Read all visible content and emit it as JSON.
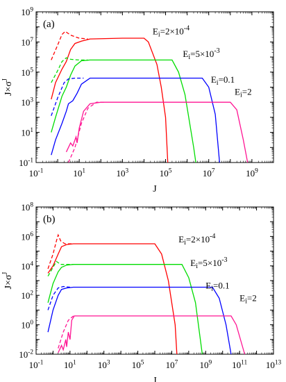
{
  "chart_data": [
    {
      "type": "line",
      "panel_label": "(a)",
      "xlabel": "J",
      "ylabel": "J×σ",
      "ylabel_sup": "J",
      "xscale": "log",
      "yscale": "log",
      "xlim_exp": [
        -1,
        10
      ],
      "ylim_exp": [
        -1,
        9
      ],
      "x_ticks": [
        {
          "exp": -1,
          "label": "10",
          "sup": "-1"
        },
        {
          "exp": 1,
          "label": "10",
          "sup": "1"
        },
        {
          "exp": 3,
          "label": "10",
          "sup": "3"
        },
        {
          "exp": 5,
          "label": "10",
          "sup": "5"
        },
        {
          "exp": 7,
          "label": "10",
          "sup": "7"
        },
        {
          "exp": 9,
          "label": "10",
          "sup": "9"
        }
      ],
      "y_ticks": [
        {
          "exp": -1,
          "label": "10",
          "sup": "-1"
        },
        {
          "exp": 1,
          "label": "10",
          "sup": "1"
        },
        {
          "exp": 3,
          "label": "10",
          "sup": "3"
        },
        {
          "exp": 5,
          "label": "10",
          "sup": "5"
        },
        {
          "exp": 7,
          "label": "10",
          "sup": "7"
        },
        {
          "exp": 9,
          "label": "10",
          "sup": "9"
        }
      ],
      "series": [
        {
          "label_main": "E",
          "label_sub": "i",
          "label_value": "=2×10",
          "label_sup": "-4",
          "label_at": [
            4.4,
            7.5
          ],
          "color": "#ff0000",
          "solid": [
            [
              -0.3,
              3.2
            ],
            [
              -0.1,
              4.3
            ],
            [
              0.2,
              5.2
            ],
            [
              0.4,
              5.7
            ],
            [
              0.6,
              6.5
            ],
            [
              0.8,
              6.9
            ],
            [
              1.1,
              7.05
            ],
            [
              1.5,
              7.2
            ],
            [
              3.0,
              7.25
            ],
            [
              4.0,
              7.25
            ],
            [
              4.2,
              7.0
            ],
            [
              4.6,
              5.5
            ],
            [
              4.8,
              4.0
            ],
            [
              5.0,
              2.0
            ],
            [
              5.1,
              -1.0
            ]
          ],
          "dashed": [
            [
              -0.3,
              5.8
            ],
            [
              0.0,
              6.8
            ],
            [
              0.2,
              7.5
            ],
            [
              0.35,
              7.7
            ],
            [
              0.6,
              7.45
            ],
            [
              1.0,
              7.25
            ],
            [
              1.4,
              7.2
            ]
          ]
        },
        {
          "label_main": "E",
          "label_sub": "i",
          "label_value": "=5×10",
          "label_sup": "-3",
          "label_at": [
            5.8,
            6.0
          ],
          "color": "#00dd00",
          "solid": [
            [
              -0.3,
              1.0
            ],
            [
              -0.1,
              2.0
            ],
            [
              0.2,
              3.4
            ],
            [
              0.4,
              4.0
            ],
            [
              0.6,
              4.8
            ],
            [
              0.8,
              5.4
            ],
            [
              1.1,
              5.75
            ],
            [
              1.5,
              5.8
            ],
            [
              4.0,
              5.8
            ],
            [
              5.3,
              5.8
            ],
            [
              5.6,
              5.0
            ],
            [
              5.9,
              3.5
            ],
            [
              6.3,
              0.0
            ],
            [
              6.4,
              -1.0
            ]
          ],
          "dashed": [
            [
              -0.3,
              4.3
            ],
            [
              0.0,
              5.1
            ],
            [
              0.2,
              5.7
            ],
            [
              0.4,
              5.95
            ],
            [
              0.6,
              5.85
            ],
            [
              1.0,
              5.8
            ],
            [
              1.4,
              5.8
            ]
          ]
        },
        {
          "label_main": "E",
          "label_sub": "i",
          "label_value": "=0.1",
          "label_sup": "",
          "label_at": [
            7.1,
            4.3
          ],
          "color": "#0000ff",
          "solid": [
            [
              -0.3,
              -0.5
            ],
            [
              -0.1,
              0.5
            ],
            [
              0.2,
              1.6
            ],
            [
              0.4,
              2.4
            ],
            [
              0.5,
              2.9
            ],
            [
              0.7,
              3.1
            ],
            [
              0.9,
              3.6
            ],
            [
              1.1,
              4.2
            ],
            [
              1.5,
              4.6
            ],
            [
              4.0,
              4.6
            ],
            [
              6.7,
              4.6
            ],
            [
              7.0,
              4.0
            ],
            [
              7.3,
              2.2
            ],
            [
              7.5,
              -1.0
            ]
          ],
          "dashed": [
            [
              -0.3,
              2.1
            ],
            [
              0.0,
              3.3
            ],
            [
              0.3,
              4.3
            ],
            [
              0.5,
              4.55
            ],
            [
              0.8,
              4.6
            ],
            [
              1.2,
              4.6
            ]
          ]
        },
        {
          "label_main": "E",
          "label_sub": "i",
          "label_value": "=2",
          "label_sup": "",
          "label_at": [
            8.2,
            3.5
          ],
          "color": "#ff1493",
          "solid": [
            [
              0.4,
              -0.3
            ],
            [
              0.6,
              0.3
            ],
            [
              0.7,
              0.1
            ],
            [
              0.85,
              0.7
            ],
            [
              0.9,
              0.3
            ],
            [
              1.0,
              1.3
            ],
            [
              1.2,
              2.4
            ],
            [
              1.5,
              2.9
            ],
            [
              2.0,
              3.0
            ],
            [
              5.0,
              3.0
            ],
            [
              8.0,
              3.0
            ],
            [
              8.3,
              2.5
            ],
            [
              8.6,
              0.5
            ],
            [
              8.8,
              -1.0
            ]
          ],
          "dashed": [
            [
              0.5,
              -1.0
            ],
            [
              0.8,
              0.0
            ],
            [
              1.1,
              1.6
            ],
            [
              1.4,
              2.6
            ],
            [
              1.8,
              3.0
            ],
            [
              2.2,
              3.0
            ]
          ]
        }
      ]
    },
    {
      "type": "line",
      "panel_label": "(b)",
      "xlabel": "J",
      "ylabel": "J×σ",
      "ylabel_sup": "J",
      "xscale": "log",
      "yscale": "log",
      "xlim_exp": [
        -1,
        13
      ],
      "ylim_exp": [
        -2,
        8
      ],
      "x_ticks": [
        {
          "exp": -1,
          "label": "10",
          "sup": "-1"
        },
        {
          "exp": 1,
          "label": "10",
          "sup": "1"
        },
        {
          "exp": 3,
          "label": "10",
          "sup": "3"
        },
        {
          "exp": 5,
          "label": "10",
          "sup": "5"
        },
        {
          "exp": 7,
          "label": "10",
          "sup": "7"
        },
        {
          "exp": 9,
          "label": "10",
          "sup": "9"
        },
        {
          "exp": 11,
          "label": "10",
          "sup": "11"
        },
        {
          "exp": 13,
          "label": "10",
          "sup": "13"
        }
      ],
      "y_ticks": [
        {
          "exp": -2,
          "label": "10",
          "sup": "-2"
        },
        {
          "exp": 0,
          "label": "10",
          "sup": "0"
        },
        {
          "exp": 2,
          "label": "10",
          "sup": "2"
        },
        {
          "exp": 4,
          "label": "10",
          "sup": "4"
        },
        {
          "exp": 6,
          "label": "10",
          "sup": "6"
        },
        {
          "exp": 8,
          "label": "10",
          "sup": "8"
        }
      ],
      "series": [
        {
          "label_main": "E",
          "label_sub": "i",
          "label_value": "=2×10",
          "label_sup": "-4",
          "label_at": [
            7.4,
            5.6
          ],
          "color": "#ff0000",
          "solid": [
            [
              -0.3,
              3.5
            ],
            [
              0.0,
              4.0
            ],
            [
              0.3,
              4.8
            ],
            [
              0.5,
              5.3
            ],
            [
              0.8,
              5.45
            ],
            [
              1.2,
              5.5
            ],
            [
              3.0,
              5.5
            ],
            [
              6.0,
              5.5
            ],
            [
              6.4,
              4.8
            ],
            [
              6.8,
              3.0
            ],
            [
              7.2,
              0.0
            ],
            [
              7.3,
              -2.0
            ]
          ],
          "dashed": [
            [
              -0.3,
              3.8
            ],
            [
              0.0,
              4.8
            ],
            [
              0.2,
              5.7
            ],
            [
              0.3,
              6.1
            ],
            [
              0.45,
              5.7
            ],
            [
              0.7,
              5.5
            ],
            [
              1.2,
              5.5
            ]
          ]
        },
        {
          "label_main": "E",
          "label_sub": "i",
          "label_value": "=5×10",
          "label_sup": "-3",
          "label_at": [
            8.1,
            4.0
          ],
          "color": "#00dd00",
          "solid": [
            [
              -0.3,
              1.5
            ],
            [
              0.0,
              2.8
            ],
            [
              0.3,
              3.6
            ],
            [
              0.5,
              3.9
            ],
            [
              0.8,
              4.05
            ],
            [
              1.2,
              4.1
            ],
            [
              4.0,
              4.1
            ],
            [
              7.6,
              4.1
            ],
            [
              8.0,
              3.2
            ],
            [
              8.4,
              1.5
            ],
            [
              8.8,
              -2.0
            ]
          ],
          "dashed": [
            [
              -0.3,
              3.3
            ],
            [
              0.0,
              3.9
            ],
            [
              0.2,
              4.3
            ],
            [
              0.45,
              4.1
            ],
            [
              0.8,
              4.1
            ],
            [
              1.2,
              4.1
            ]
          ]
        },
        {
          "label_main": "E",
          "label_sub": "i",
          "label_value": "=0.1",
          "label_sup": "",
          "label_at": [
            9.0,
            2.45
          ],
          "color": "#0000ff",
          "solid": [
            [
              -0.3,
              -0.5
            ],
            [
              0.0,
              1.0
            ],
            [
              0.3,
              2.0
            ],
            [
              0.5,
              2.4
            ],
            [
              0.8,
              2.5
            ],
            [
              1.2,
              2.55
            ],
            [
              4.0,
              2.55
            ],
            [
              9.4,
              2.55
            ],
            [
              9.8,
              1.8
            ],
            [
              10.2,
              0.0
            ],
            [
              10.5,
              -2.0
            ]
          ],
          "dashed": [
            [
              -0.3,
              1.0
            ],
            [
              0.0,
              2.0
            ],
            [
              0.3,
              2.5
            ],
            [
              0.6,
              2.6
            ],
            [
              1.0,
              2.55
            ]
          ]
        },
        {
          "label_main": "E",
          "label_sub": "i",
          "label_value": "=2",
          "label_sup": "",
          "label_at": [
            11.0,
            1.6
          ],
          "color": "#ff1493",
          "solid": [
            [
              0.3,
              -1.9
            ],
            [
              0.5,
              -1.4
            ],
            [
              0.6,
              -1.7
            ],
            [
              0.75,
              -1.0
            ],
            [
              0.8,
              -1.5
            ],
            [
              0.9,
              -0.5
            ],
            [
              1.0,
              -1.0
            ],
            [
              1.1,
              0.3
            ],
            [
              1.25,
              0.6
            ],
            [
              2.0,
              0.6
            ],
            [
              10.5,
              0.6
            ],
            [
              10.8,
              0.0
            ],
            [
              11.1,
              -1.2
            ],
            [
              11.3,
              -2.0
            ]
          ],
          "dashed": [
            [
              0.3,
              -1.6
            ],
            [
              0.6,
              -0.5
            ],
            [
              0.9,
              0.3
            ],
            [
              1.2,
              0.6
            ]
          ]
        }
      ]
    }
  ]
}
